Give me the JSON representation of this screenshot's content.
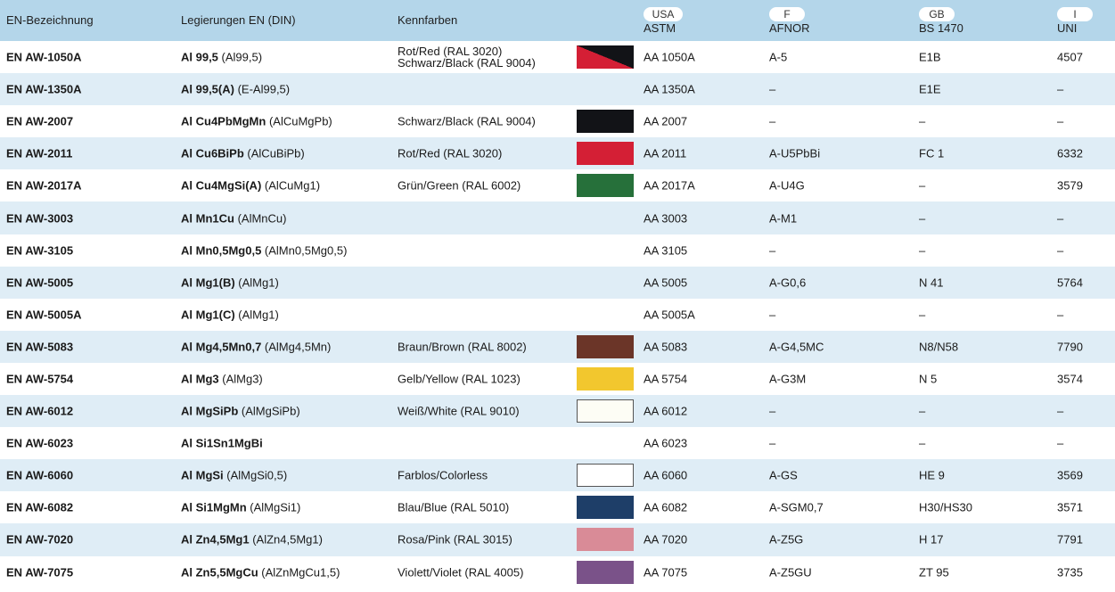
{
  "header": {
    "col_code": "EN-Bezeichnung",
    "col_alloy": "Legierungen EN (DIN)",
    "col_color": "Kennfarben",
    "col_astm_country": "USA",
    "col_astm": "ASTM",
    "col_afnor_country": "F",
    "col_afnor": "AFNOR",
    "col_bs_country": "GB",
    "col_bs": "BS 1470",
    "col_uni_country": "I",
    "col_uni": "UNI"
  },
  "rows": [
    {
      "code": "EN AW-1050A",
      "alloy_bold": "Al 99,5",
      "alloy_din": "(Al99,5)",
      "color_line1": "Rot/Red (RAL 3020)",
      "color_line2": "Schwarz/Black (RAL 9004)",
      "swatch": "split-red-black",
      "astm": "AA 1050A",
      "afnor": "A-5",
      "bs": "E1B",
      "uni": "4507"
    },
    {
      "code": "EN AW-1350A",
      "alloy_bold": "Al 99,5(A)",
      "alloy_din": "(E-Al99,5)",
      "color_line1": "",
      "color_line2": "",
      "swatch": "",
      "astm": "AA 1350A",
      "afnor": "–",
      "bs": "E1E",
      "uni": "–"
    },
    {
      "code": "EN AW-2007",
      "alloy_bold": "Al Cu4PbMgMn",
      "alloy_din": "(AlCuMgPb)",
      "color_line1": "Schwarz/Black (RAL 9004)",
      "color_line2": "",
      "swatch": "#121317",
      "astm": "AA 2007",
      "afnor": "–",
      "bs": "–",
      "uni": "–"
    },
    {
      "code": "EN AW-2011",
      "alloy_bold": "Al Cu6BiPb",
      "alloy_din": "(AlCuBiPb)",
      "color_line1": "Rot/Red (RAL 3020)",
      "color_line2": "",
      "swatch": "#d41f35",
      "astm": "AA 2011",
      "afnor": "A-U5PbBi",
      "bs": "FC 1",
      "uni": "6332"
    },
    {
      "code": "EN AW-2017A",
      "alloy_bold": "Al Cu4MgSi(A)",
      "alloy_din": "(AlCuMg1)",
      "color_line1": "Grün/Green (RAL 6002)",
      "color_line2": "",
      "swatch": "#26703a",
      "astm": "AA 2017A",
      "afnor": "A-U4G",
      "bs": "–",
      "uni": "3579"
    },
    {
      "code": "EN AW-3003",
      "alloy_bold": "Al Mn1Cu",
      "alloy_din": "(AlMnCu)",
      "color_line1": "",
      "color_line2": "",
      "swatch": "",
      "astm": "AA 3003",
      "afnor": "A-M1",
      "bs": "–",
      "uni": "–"
    },
    {
      "code": "EN AW-3105",
      "alloy_bold": "Al Mn0,5Mg0,5",
      "alloy_din": "(AlMn0,5Mg0,5)",
      "color_line1": "",
      "color_line2": "",
      "swatch": "",
      "astm": "AA 3105",
      "afnor": "–",
      "bs": "–",
      "uni": "–"
    },
    {
      "code": "EN AW-5005",
      "alloy_bold": "Al Mg1(B)",
      "alloy_din": "(AlMg1)",
      "color_line1": "",
      "color_line2": "",
      "swatch": "",
      "astm": "AA 5005",
      "afnor": "A-G0,6",
      "bs": "N 41",
      "uni": "5764"
    },
    {
      "code": "EN AW-5005A",
      "alloy_bold": "Al Mg1(C)",
      "alloy_din": "(AlMg1)",
      "color_line1": "",
      "color_line2": "",
      "swatch": "",
      "astm": "AA 5005A",
      "afnor": "–",
      "bs": "–",
      "uni": "–"
    },
    {
      "code": "EN AW-5083",
      "alloy_bold": "Al Mg4,5Mn0,7",
      "alloy_din": "(AlMg4,5Mn)",
      "color_line1": "Braun/Brown (RAL 8002)",
      "color_line2": "",
      "swatch": "#6b3528",
      "astm": "AA 5083",
      "afnor": "A-G4,5MC",
      "bs": "N8/N58",
      "uni": "7790"
    },
    {
      "code": "EN AW-5754",
      "alloy_bold": "Al Mg3",
      "alloy_din": "(AlMg3)",
      "color_line1": "Gelb/Yellow (RAL 1023)",
      "color_line2": "",
      "swatch": "#f2c72e",
      "astm": "AA 5754",
      "afnor": "A-G3M",
      "bs": "N 5",
      "uni": "3574"
    },
    {
      "code": "EN AW-6012",
      "alloy_bold": "Al MgSiPb",
      "alloy_din": "(AlMgSiPb)",
      "color_line1": "Weiß/White (RAL 9010)",
      "color_line2": "",
      "swatch": "#fdfdf5",
      "astm": "AA 6012",
      "afnor": "–",
      "bs": "–",
      "uni": "–"
    },
    {
      "code": "EN AW-6023",
      "alloy_bold": "Al Si1Sn1MgBi",
      "alloy_din": "",
      "color_line1": "",
      "color_line2": "",
      "swatch": "",
      "astm": "AA 6023",
      "afnor": "–",
      "bs": "–",
      "uni": "–"
    },
    {
      "code": "EN AW-6060",
      "alloy_bold": "Al MgSi",
      "alloy_din": "(AlMgSi0,5)",
      "color_line1": "Farblos/Colorless",
      "color_line2": "",
      "swatch": "#ffffff",
      "astm": "AA 6060",
      "afnor": "A-GS",
      "bs": "HE 9",
      "uni": "3569"
    },
    {
      "code": "EN AW-6082",
      "alloy_bold": "Al Si1MgMn",
      "alloy_din": "(AlMgSi1)",
      "color_line1": "Blau/Blue (RAL 5010)",
      "color_line2": "",
      "swatch": "#1e3e68",
      "astm": "AA 6082",
      "afnor": "A-SGM0,7",
      "bs": "H30/HS30",
      "uni": "3571"
    },
    {
      "code": "EN AW-7020",
      "alloy_bold": "Al Zn4,5Mg1",
      "alloy_din": "(AlZn4,5Mg1)",
      "color_line1": "Rosa/Pink (RAL 3015)",
      "color_line2": "",
      "swatch": "#d98b97",
      "astm": "AA 7020",
      "afnor": "A-Z5G",
      "bs": "H 17",
      "uni": "7791"
    },
    {
      "code": "EN AW-7075",
      "alloy_bold": "Al Zn5,5MgCu",
      "alloy_din": "(AlZnMgCu1,5)",
      "color_line1": "Violett/Violet (RAL 4005)",
      "color_line2": "",
      "swatch": "#7a5289",
      "astm": "AA 7075",
      "afnor": "A-Z5GU",
      "bs": "ZT 95",
      "uni": "3735"
    }
  ]
}
